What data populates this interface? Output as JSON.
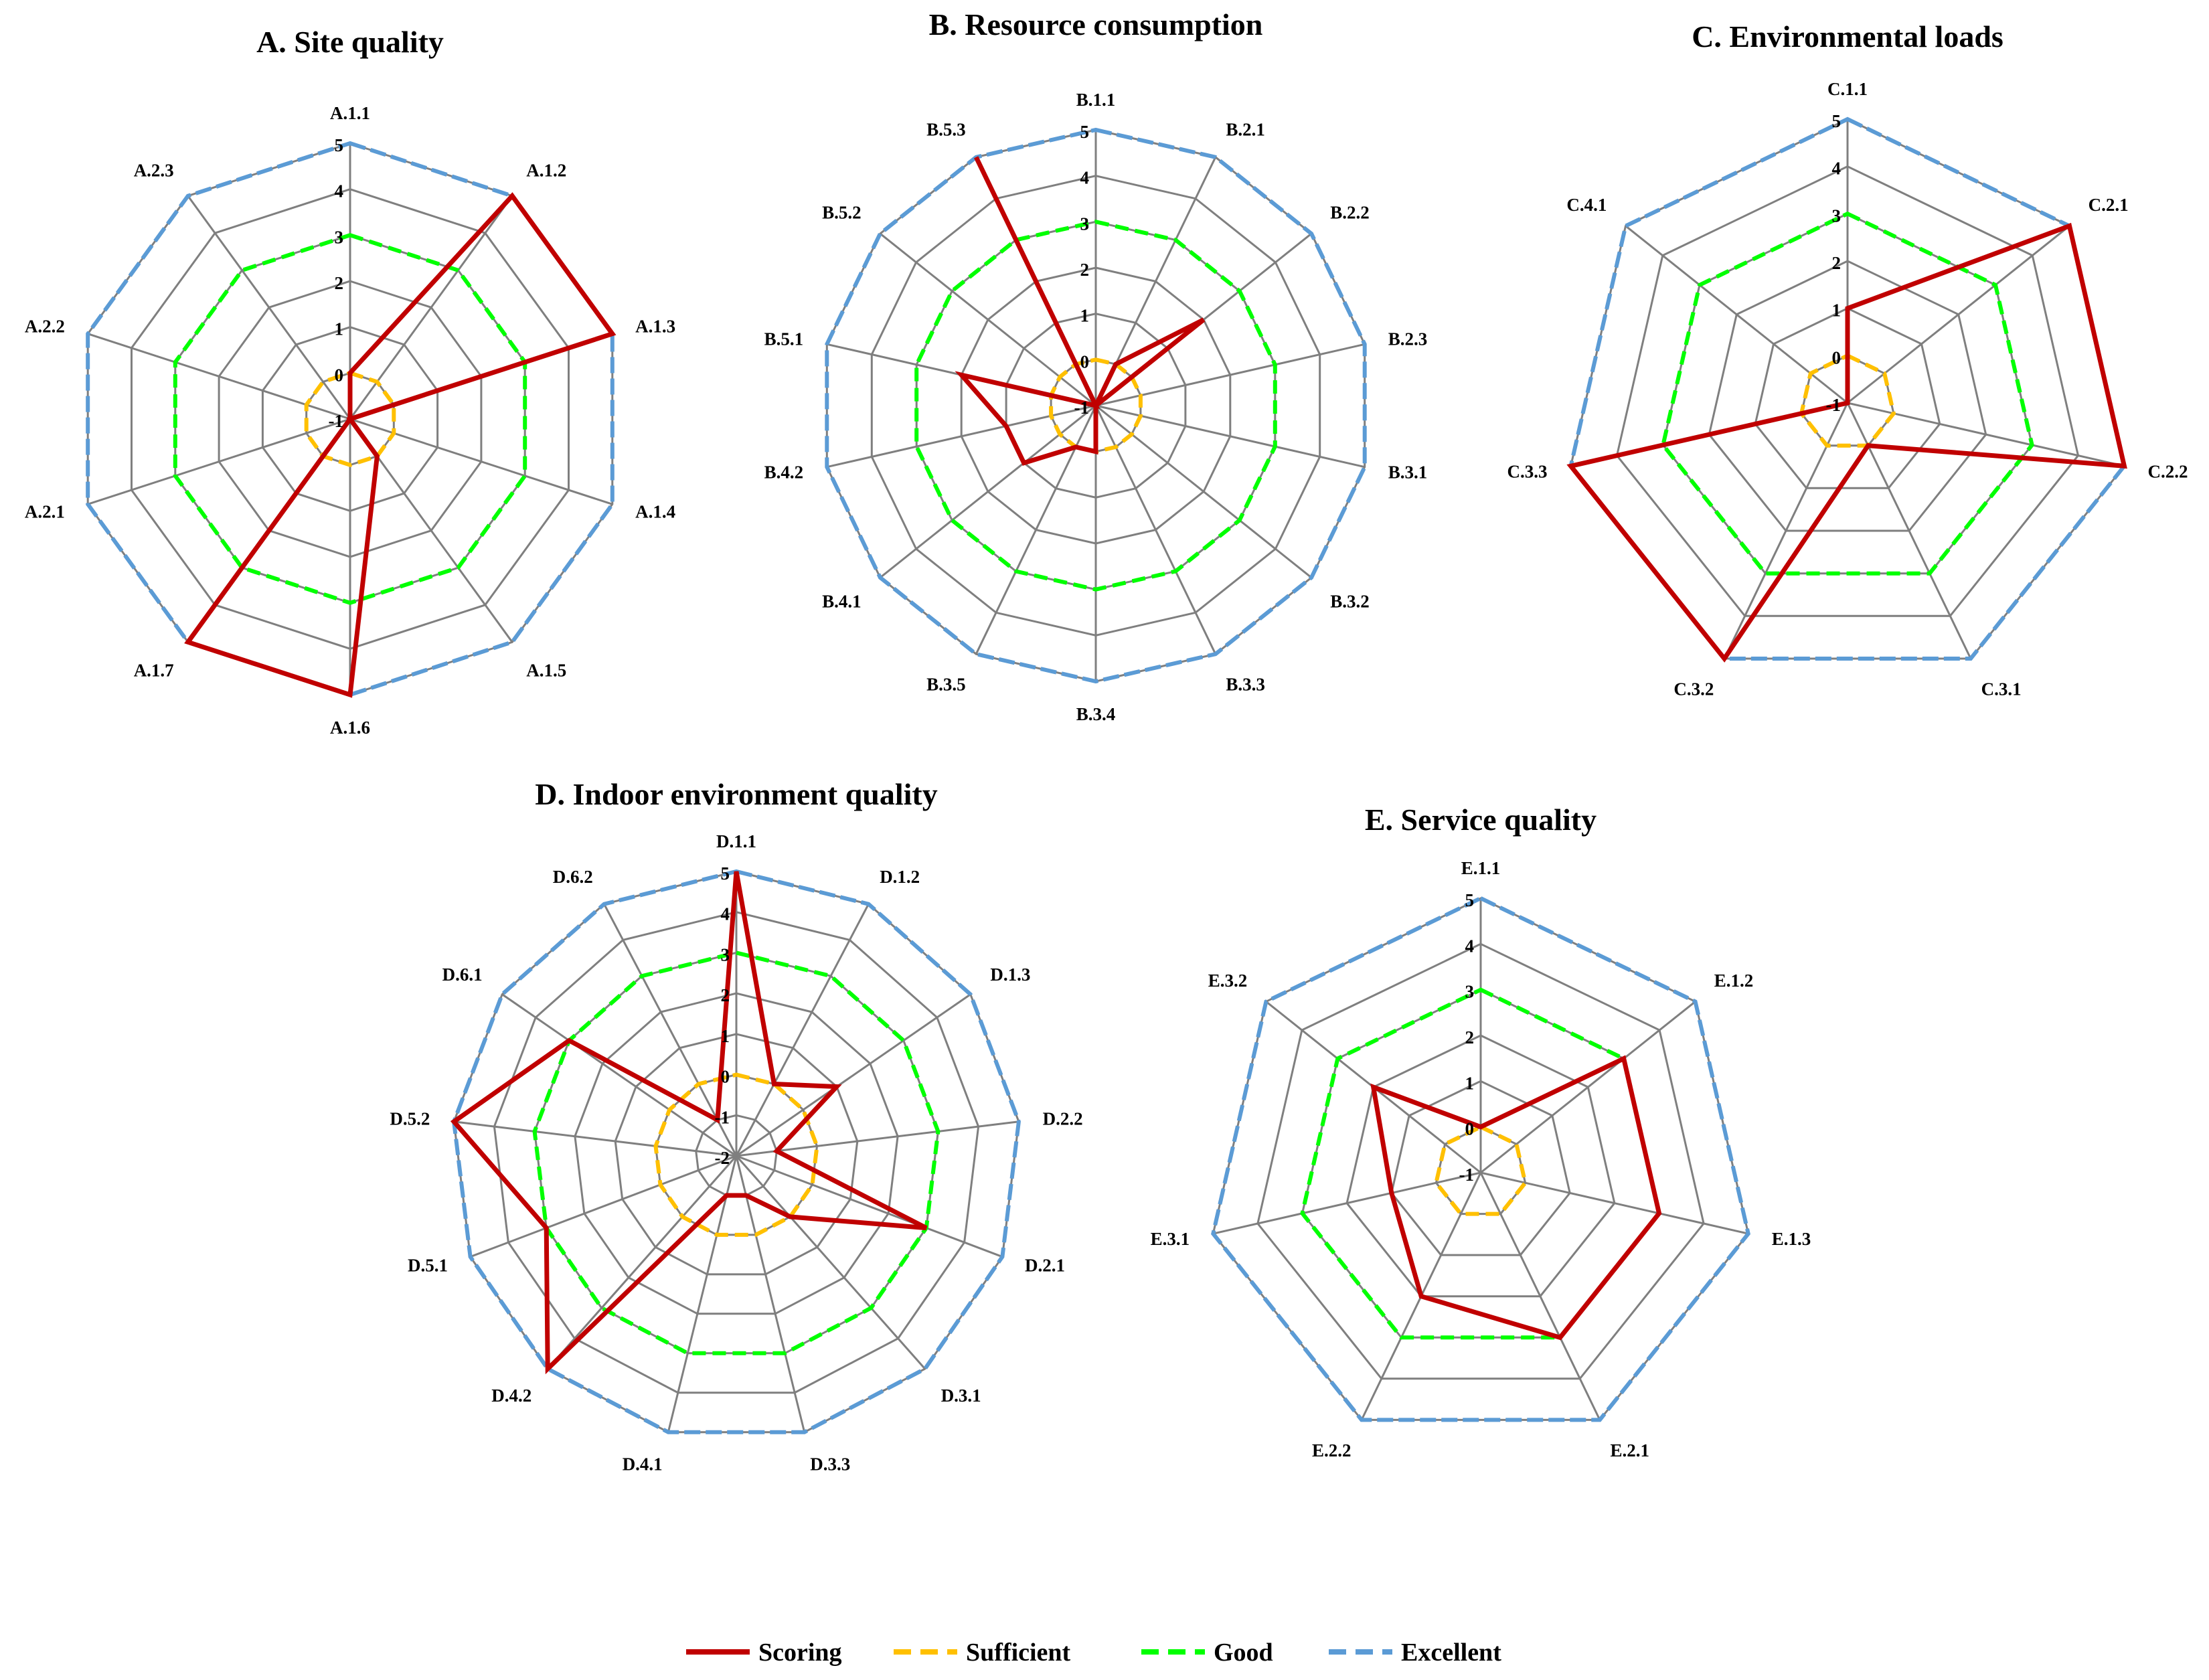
{
  "series_styles": [
    {
      "name": "Scoring",
      "color": "#c00000",
      "dash": "solid"
    },
    {
      "name": "Sufficient",
      "color": "#ffc000",
      "dash": "dashed"
    },
    {
      "name": "Good",
      "color": "#00ff00",
      "dash": "dashed"
    },
    {
      "name": "Excellent",
      "color": "#5b9bd5",
      "dash": "dashed"
    }
  ],
  "legend": {
    "items": [
      "Scoring",
      "Sufficient",
      "Good",
      "Excellent"
    ],
    "placement": "bottom-center"
  },
  "chart_data": [
    {
      "type": "radar",
      "title": "A. Site quality",
      "categories": [
        "A.1.1",
        "A.1.2",
        "A.1.3",
        "A.1.4",
        "A.1.5",
        "A.1.6",
        "A.1.7",
        "A.2.1",
        "A.2.2",
        "A.2.3"
      ],
      "rlim": [
        -1,
        5
      ],
      "ticks": [
        "-1",
        "0",
        "1",
        "2",
        "3",
        "4",
        "5"
      ],
      "series": [
        {
          "name": "Scoring",
          "values": [
            0,
            5,
            5,
            -1,
            0,
            5,
            5,
            -1,
            -1,
            -1
          ]
        },
        {
          "name": "Sufficient",
          "values": [
            0,
            0,
            0,
            0,
            0,
            0,
            0,
            0,
            0,
            0
          ]
        },
        {
          "name": "Good",
          "values": [
            3,
            3,
            3,
            3,
            3,
            3,
            3,
            3,
            3,
            3
          ]
        },
        {
          "name": "Excellent",
          "values": [
            5,
            5,
            5,
            5,
            5,
            5,
            5,
            5,
            5,
            5
          ]
        }
      ]
    },
    {
      "type": "radar",
      "title": "B. Resource consumption",
      "categories": [
        "B.1.1",
        "B.2.1",
        "B.2.2",
        "B.2.3",
        "B.3.1",
        "B.3.2",
        "B.3.3",
        "B.3.4",
        "B.3.5",
        "B.4.1",
        "B.4.2",
        "B.5.1",
        "B.5.2",
        "B.5.3"
      ],
      "rlim": [
        -1,
        5
      ],
      "ticks": [
        "-1",
        "0",
        "1",
        "2",
        "3",
        "4",
        "5"
      ],
      "series": [
        {
          "name": "Scoring",
          "values": [
            -1,
            0,
            2,
            -1,
            -1,
            -1,
            -1,
            0,
            0,
            1,
            1,
            2,
            -1,
            5
          ]
        },
        {
          "name": "Sufficient",
          "values": [
            0,
            0,
            0,
            0,
            0,
            0,
            0,
            0,
            0,
            0,
            0,
            0,
            0,
            0
          ]
        },
        {
          "name": "Good",
          "values": [
            3,
            3,
            3,
            3,
            3,
            3,
            3,
            3,
            3,
            3,
            3,
            3,
            3,
            3
          ]
        },
        {
          "name": "Excellent",
          "values": [
            5,
            5,
            5,
            5,
            5,
            5,
            5,
            5,
            5,
            5,
            5,
            5,
            5,
            5
          ]
        }
      ]
    },
    {
      "type": "radar",
      "title": "C. Environmental loads",
      "categories": [
        "C.1.1",
        "C.2.1",
        "C.2.2",
        "C.3.1",
        "C.3.2",
        "C.3.3",
        "C.4.1"
      ],
      "rlim": [
        -1,
        5
      ],
      "ticks": [
        "-1",
        "0",
        "1",
        "2",
        "3",
        "4",
        "5"
      ],
      "series": [
        {
          "name": "Scoring",
          "values": [
            1,
            5,
            5,
            0,
            5,
            5,
            -1
          ]
        },
        {
          "name": "Sufficient",
          "values": [
            0,
            0,
            0,
            0,
            0,
            0,
            0
          ]
        },
        {
          "name": "Good",
          "values": [
            3,
            3,
            3,
            3,
            3,
            3,
            3
          ]
        },
        {
          "name": "Excellent",
          "values": [
            5,
            5,
            5,
            5,
            5,
            5,
            5
          ]
        }
      ]
    },
    {
      "type": "radar",
      "title": "D. Indoor environment quality",
      "categories": [
        "D.1.1",
        "D.1.2",
        "D.1.3",
        "D.2.2",
        "D.2.1",
        "D.3.1",
        "D.3.3",
        "D.4.1",
        "D.4.2",
        "D.5.1",
        "D.5.2",
        "D.6.1",
        "D.6.2"
      ],
      "rlim": [
        -2,
        5
      ],
      "ticks": [
        "-2",
        "-1",
        "0",
        "1",
        "2",
        "3",
        "4",
        "5"
      ],
      "series": [
        {
          "name": "Scoring",
          "values": [
            5,
            0,
            1,
            -1,
            3,
            0,
            -1,
            -1,
            5,
            3,
            5,
            3,
            -1
          ]
        },
        {
          "name": "Sufficient",
          "values": [
            0,
            0,
            0,
            0,
            0,
            0,
            0,
            0,
            0,
            0,
            0,
            0,
            0
          ]
        },
        {
          "name": "Good",
          "values": [
            3,
            3,
            3,
            3,
            3,
            3,
            3,
            3,
            3,
            3,
            3,
            3,
            3
          ]
        },
        {
          "name": "Excellent",
          "values": [
            5,
            5,
            5,
            5,
            5,
            5,
            5,
            5,
            5,
            5,
            5,
            5,
            5
          ]
        }
      ]
    },
    {
      "type": "radar",
      "title": "E. Service quality",
      "categories": [
        "E.1.1",
        "E.1.2",
        "E.1.3",
        "E.2.1",
        "E.2.2",
        "E.3.1",
        "E.3.2"
      ],
      "rlim": [
        -1,
        5
      ],
      "ticks": [
        "-1",
        "0",
        "1",
        "2",
        "3",
        "4",
        "5"
      ],
      "series": [
        {
          "name": "Scoring",
          "values": [
            0,
            3,
            3,
            3,
            2,
            1,
            2
          ]
        },
        {
          "name": "Sufficient",
          "values": [
            0,
            0,
            0,
            0,
            0,
            0,
            0
          ]
        },
        {
          "name": "Good",
          "values": [
            3,
            3,
            3,
            3,
            3,
            3,
            3
          ]
        },
        {
          "name": "Excellent",
          "values": [
            5,
            5,
            5,
            5,
            5,
            5,
            5
          ]
        }
      ]
    }
  ]
}
